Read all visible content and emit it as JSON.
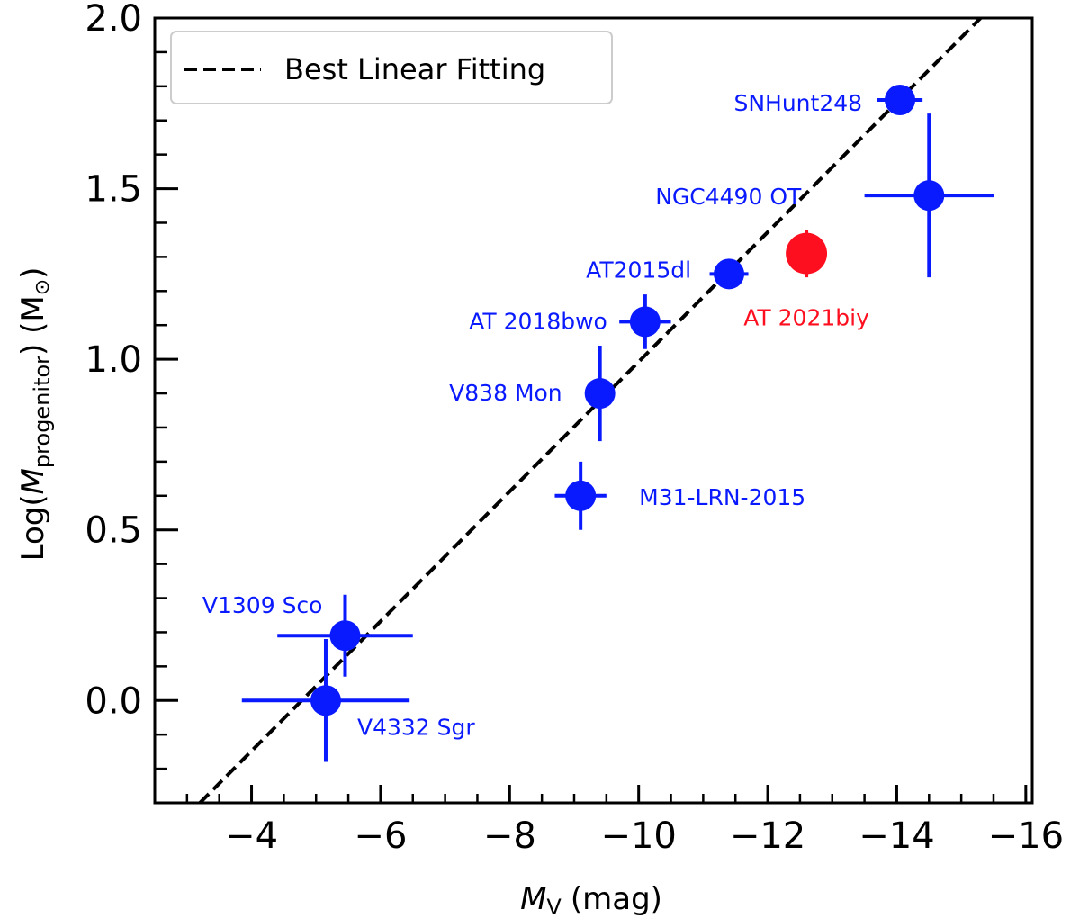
{
  "chart_data": {
    "type": "scatter",
    "xlabel_main": "M",
    "xlabel_sub": "V",
    "xlabel_unit": "(mag)",
    "ylabel_pre": "Log(",
    "ylabel_main": "M",
    "ylabel_sub": "progenitor",
    "ylabel_post": ") (M",
    "ylabel_sun": "⊙",
    "ylabel_close": ")",
    "xlim": [
      -2.5,
      -16.1
    ],
    "ylim": [
      -0.3,
      2.0
    ],
    "x_inverted": true,
    "x_ticks": [
      -4,
      -6,
      -8,
      -10,
      -12,
      -14,
      -16
    ],
    "x_tick_labels": [
      "−4",
      "−6",
      "−8",
      "−10",
      "−12",
      "−14",
      "−16"
    ],
    "y_ticks": [
      0.0,
      0.5,
      1.0,
      1.5,
      2.0
    ],
    "y_tick_labels": [
      "0.0",
      "0.5",
      "1.0",
      "1.5",
      "2.0"
    ],
    "x_minor_step": 0.5,
    "y_minor_step": 0.1,
    "grid": false,
    "legend": {
      "placement": "top-left",
      "entries": [
        {
          "label": "Best Linear Fitting",
          "style": "dashed",
          "color": "#000000"
        }
      ]
    },
    "fit_line": {
      "x": [
        -3.2,
        -15.3
      ],
      "y": [
        -0.3,
        2.0
      ],
      "color": "#000000"
    },
    "colors": {
      "default": "#0a1afe",
      "highlight": "#fe0f1f"
    },
    "points": [
      {
        "label": "SNHunt248",
        "x": -14.05,
        "y": 1.76,
        "xerr": 0.35,
        "yerr": 0.0,
        "color": "#0a1afe",
        "label_anchor": "end",
        "label_dx": -42,
        "label_dy": 12
      },
      {
        "label": "NGC4490 OT",
        "x": -14.5,
        "y": 1.48,
        "xerr": 1.0,
        "yerr": 0.24,
        "color": "#0a1afe",
        "label_anchor": "end",
        "label_dx": -142,
        "label_dy": 10
      },
      {
        "label": "AT 2021biy",
        "x": -12.6,
        "y": 1.31,
        "xerr": 0.0,
        "yerr": 0.07,
        "color": "#fe0f1f",
        "label_anchor": "middle",
        "label_dx": 0,
        "label_dy": 80,
        "r_scale": 1.35
      },
      {
        "label": "AT2015dl",
        "x": -11.4,
        "y": 1.25,
        "xerr": 0.3,
        "yerr": 0.0,
        "color": "#0a1afe",
        "label_anchor": "end",
        "label_dx": -42,
        "label_dy": 4
      },
      {
        "label": "AT 2018bwo",
        "x": -10.1,
        "y": 1.11,
        "xerr": 0.4,
        "yerr": 0.08,
        "color": "#0a1afe",
        "label_anchor": "end",
        "label_dx": -42,
        "label_dy": 8
      },
      {
        "label": "V838 Mon",
        "x": -9.4,
        "y": 0.9,
        "xerr": 0.0,
        "yerr": 0.14,
        "color": "#0a1afe",
        "label_anchor": "end",
        "label_dx": -42,
        "label_dy": 8
      },
      {
        "label": "M31-LRN-2015",
        "x": -9.1,
        "y": 0.6,
        "xerr": 0.4,
        "yerr": 0.1,
        "color": "#0a1afe",
        "label_anchor": "start",
        "label_dx": 65,
        "label_dy": 10
      },
      {
        "label": "V1309 Sco",
        "x": -5.45,
        "y": 0.19,
        "xerr": 1.05,
        "yerr": 0.12,
        "color": "#0a1afe",
        "label_anchor": "end",
        "label_dx": -25,
        "label_dy": -25
      },
      {
        "label": "V4332 Sgr",
        "x": -5.15,
        "y": 0.0,
        "xerr": 1.3,
        "yerr": 0.18,
        "color": "#0a1afe",
        "label_anchor": "start",
        "label_dx": 35,
        "label_dy": 38
      }
    ]
  }
}
